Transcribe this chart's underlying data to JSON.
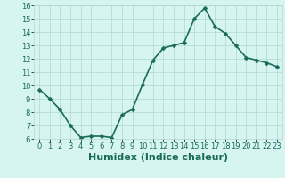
{
  "x": [
    0,
    1,
    2,
    3,
    4,
    5,
    6,
    7,
    8,
    9,
    10,
    11,
    12,
    13,
    14,
    15,
    16,
    17,
    18,
    19,
    20,
    21,
    22,
    23
  ],
  "y": [
    9.7,
    9.0,
    8.2,
    7.0,
    6.1,
    6.2,
    6.2,
    6.1,
    7.8,
    8.2,
    10.1,
    11.9,
    12.8,
    13.0,
    13.2,
    15.0,
    15.8,
    14.4,
    13.9,
    13.0,
    12.1,
    11.9,
    11.7,
    11.4
  ],
  "xlabel": "Humidex (Indice chaleur)",
  "xlim": [
    -0.5,
    23.5
  ],
  "ylim": [
    6,
    16
  ],
  "yticks": [
    6,
    7,
    8,
    9,
    10,
    11,
    12,
    13,
    14,
    15,
    16
  ],
  "xticks": [
    0,
    1,
    2,
    3,
    4,
    5,
    6,
    7,
    8,
    9,
    10,
    11,
    12,
    13,
    14,
    15,
    16,
    17,
    18,
    19,
    20,
    21,
    22,
    23
  ],
  "line_color": "#1a6b5a",
  "marker_color": "#1a6b5a",
  "bg_color": "#d6f5f0",
  "grid_color": "#b0d8d0",
  "xlabel_fontsize": 8,
  "tick_fontsize": 6,
  "line_width": 1.2,
  "marker_size": 2.5
}
